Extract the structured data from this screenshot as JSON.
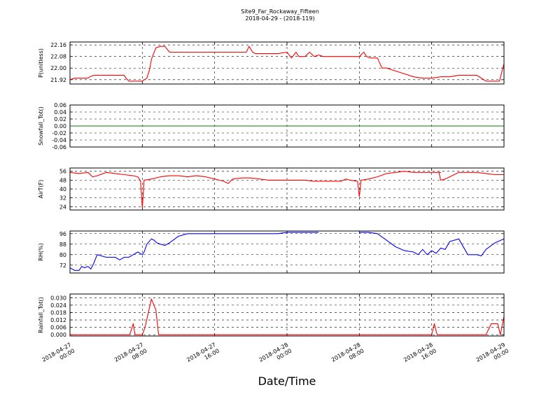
{
  "chart_data": {
    "title": "Site9_Far_Rockaway_Fifteen",
    "subtitle": "2018-04-29 - (2018-119)",
    "xlabel": "Date/Time",
    "x_ticks": [
      {
        "l1": "2018-04-27",
        "l2": "00:00",
        "h": 0
      },
      {
        "l1": "2018-04-27",
        "l2": "08:00",
        "h": 8
      },
      {
        "l1": "2018-04-27",
        "l2": "16:00",
        "h": 16
      },
      {
        "l1": "2018-04-28",
        "l2": "00:00",
        "h": 24
      },
      {
        "l1": "2018-04-28",
        "l2": "08:00",
        "h": 32
      },
      {
        "l1": "2018-04-28",
        "l2": "16:00",
        "h": 40
      },
      {
        "l1": "2018-04-29",
        "l2": "00:00",
        "h": 48
      }
    ],
    "panels": [
      {
        "type": "line",
        "ylabel": "P(unitless)",
        "color": "#ff0000",
        "ylim": [
          21.89,
          22.18
        ],
        "yticks": [
          "22.16",
          "22.08",
          "22.00",
          "21.92"
        ],
        "x": [
          0,
          0.5,
          1,
          1.5,
          2,
          2.2,
          2.6,
          3,
          4,
          5,
          5.5,
          6,
          6.2,
          6.5,
          7,
          8,
          8.5,
          8.8,
          9,
          9.5,
          10,
          10.5,
          11,
          12,
          13,
          14,
          15,
          16,
          17,
          18,
          19,
          19.5,
          19.8,
          20.2,
          20.5,
          21,
          22,
          23,
          24,
          24.5,
          25,
          25.3,
          25.6,
          26,
          26.5,
          27,
          27.5,
          28,
          29,
          30,
          31,
          32,
          32.5,
          32.8,
          33.2,
          33.5,
          34,
          34.5,
          35,
          36,
          37,
          38,
          39,
          40,
          41,
          42,
          43,
          44,
          45,
          46,
          46.5,
          47,
          47.5,
          48
        ],
        "y": [
          21.92,
          21.93,
          21.93,
          21.93,
          21.93,
          21.94,
          21.95,
          21.95,
          21.95,
          21.95,
          21.95,
          21.95,
          21.93,
          21.91,
          21.91,
          21.91,
          21.93,
          21.99,
          22.06,
          22.14,
          22.15,
          22.15,
          22.11,
          22.11,
          22.11,
          22.11,
          22.11,
          22.11,
          22.11,
          22.11,
          22.11,
          22.11,
          22.15,
          22.11,
          22.1,
          22.1,
          22.1,
          22.1,
          22.11,
          22.07,
          22.11,
          22.08,
          22.08,
          22.08,
          22.11,
          22.08,
          22.09,
          22.08,
          22.08,
          22.08,
          22.08,
          22.08,
          22.11,
          22.08,
          22.07,
          22.07,
          22.07,
          22.0,
          22.0,
          21.98,
          21.96,
          21.94,
          21.93,
          21.93,
          21.94,
          21.94,
          21.95,
          21.95,
          21.95,
          21.91,
          21.91,
          21.91,
          21.91,
          22.03
        ]
      },
      {
        "type": "line",
        "ylabel": "Snowfall_Tot()",
        "color": "#008000",
        "ylim": [
          -0.06,
          0.06
        ],
        "yticks": [
          "0.06",
          "0.04",
          "0.02",
          "0.00",
          "-0.02",
          "-0.04",
          "-0.06"
        ],
        "x": [
          0,
          48
        ],
        "y": [
          0,
          0
        ]
      },
      {
        "type": "line",
        "ylabel": "AirT(F)",
        "color": "#ff0000",
        "ylim": [
          21,
          59
        ],
        "yticks": [
          "56",
          "48",
          "40",
          "32",
          "24"
        ],
        "x": [
          0,
          1,
          2,
          2.5,
          3,
          4,
          5,
          6,
          7,
          7.5,
          7.8,
          8,
          8.2,
          9,
          10,
          11,
          12,
          13,
          14,
          15,
          16,
          16.5,
          17,
          17.5,
          18,
          19,
          20,
          21,
          22,
          23,
          24,
          25,
          26,
          27,
          28,
          29,
          30,
          30.5,
          31,
          31.8,
          32,
          32.2,
          33,
          34,
          35,
          36,
          37,
          38,
          39,
          40,
          41,
          39.5,
          40,
          40.8,
          41,
          41.5,
          42,
          43,
          44,
          45,
          46,
          47,
          48
        ],
        "y": [
          55,
          54,
          55,
          51,
          52,
          55,
          54,
          53,
          52,
          51,
          47,
          23,
          48,
          49,
          51,
          52,
          52,
          51,
          52,
          51,
          49,
          48,
          47,
          45,
          49,
          50,
          50,
          49,
          48,
          48,
          48,
          48,
          48,
          47,
          47,
          47,
          47,
          49,
          48,
          47,
          33,
          48,
          49,
          51,
          54,
          55,
          56,
          55,
          55,
          55,
          55,
          55,
          55,
          55,
          48,
          49,
          51,
          55,
          55,
          55,
          54,
          53,
          53
        ]
      },
      {
        "type": "line",
        "ylabel": "RH(%)",
        "color": "#0000ff",
        "ylim": [
          66,
          98
        ],
        "yticks": [
          "96",
          "88",
          "80",
          "72"
        ],
        "x": [
          0,
          0.5,
          1,
          1.3,
          1.6,
          2,
          2.3,
          2.6,
          3,
          4,
          5,
          5.5,
          6,
          6.5,
          7,
          7.5,
          8,
          8.2,
          8.5,
          9,
          9.3,
          9.6,
          10,
          10.5,
          11,
          12,
          13,
          14,
          15,
          16,
          17,
          18,
          19,
          20,
          21,
          22,
          23,
          24,
          25,
          26,
          27,
          27.5
        ],
        "y": [
          70,
          68,
          68,
          71,
          70,
          71,
          69,
          73,
          80,
          78,
          78,
          76,
          78,
          78,
          80,
          82,
          80,
          82,
          88,
          92,
          91,
          89,
          88,
          87,
          89,
          94,
          96,
          96,
          96,
          96,
          96,
          96,
          96,
          96,
          96,
          96,
          96,
          97,
          97,
          97,
          97,
          97
        ],
        "x2": [
          32,
          33,
          34,
          35,
          36,
          37,
          38,
          38.5,
          39,
          39.5,
          40,
          40.5,
          41,
          41.5,
          42,
          43,
          44,
          45,
          45.5,
          46,
          47,
          48
        ],
        "y2": [
          97,
          97,
          96,
          91,
          86,
          83,
          82,
          80,
          84,
          80,
          83,
          81,
          85,
          84,
          90,
          92,
          80,
          80,
          79,
          84,
          89,
          92
        ]
      },
      {
        "type": "line",
        "ylabel": "Rainfall_Tot()",
        "color": "#ff0000",
        "ylim": [
          -0.001,
          0.033
        ],
        "yticks": [
          "0.030",
          "0.024",
          "0.018",
          "0.012",
          "0.006",
          "0.000"
        ],
        "x": [
          0,
          6.6,
          7,
          7.2,
          8,
          8.3,
          9,
          9.5,
          9.8,
          10,
          40,
          40.3,
          40.6,
          46,
          46.6,
          47.3,
          47.6,
          48
        ],
        "y": [
          0,
          0,
          0.009,
          0,
          0,
          0.006,
          0.029,
          0.02,
          0,
          0,
          0,
          0.009,
          0,
          0,
          0.009,
          0.009,
          0,
          0.015
        ]
      }
    ]
  }
}
